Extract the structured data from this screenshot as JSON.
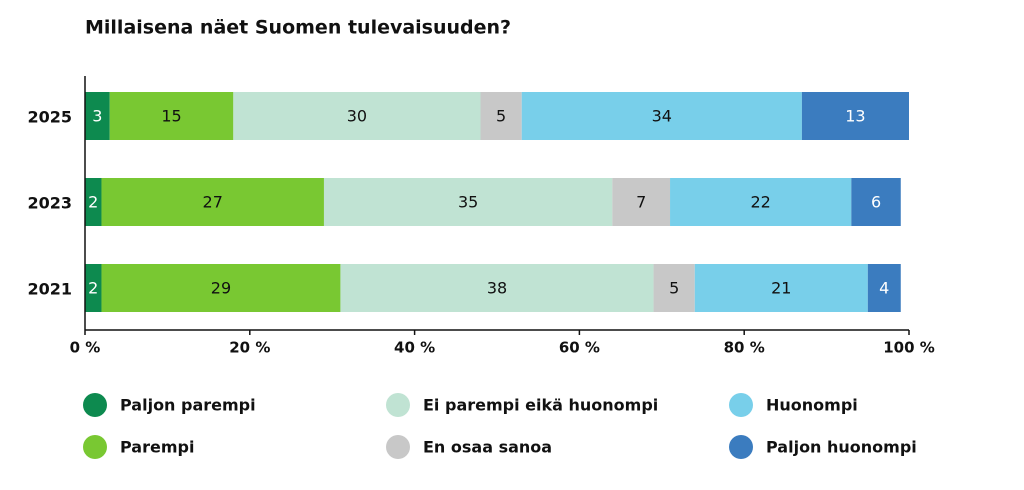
{
  "chart_data": {
    "type": "stacked-bar-horizontal",
    "title": "Millaisena näet Suomen tulevaisuuden?",
    "categories": [
      "2025",
      "2023",
      "2021"
    ],
    "series": [
      {
        "name": "Paljon parempi",
        "color": "#0d8a4f",
        "values": [
          3,
          2,
          2
        ]
      },
      {
        "name": "Parempi",
        "color": "#79c832",
        "values": [
          15,
          27,
          29
        ]
      },
      {
        "name": "Ei parempi eikä huonompi",
        "color": "#c0e3d3",
        "values": [
          30,
          35,
          38
        ]
      },
      {
        "name": "En osaa sanoa",
        "color": "#c8c8c8",
        "values": [
          5,
          7,
          5
        ]
      },
      {
        "name": "Huonompi",
        "color": "#78cfea",
        "values": [
          34,
          22,
          21
        ]
      },
      {
        "name": "Paljon huonompi",
        "color": "#3b7cbf",
        "values": [
          13,
          6,
          4
        ]
      }
    ],
    "xlim": [
      0,
      100
    ],
    "xticks": [
      {
        "value": 0,
        "label": "0 %"
      },
      {
        "value": 20,
        "label": "20 %"
      },
      {
        "value": 40,
        "label": "40 %"
      },
      {
        "value": 60,
        "label": "60 %"
      },
      {
        "value": 80,
        "label": "80 %"
      },
      {
        "value": 100,
        "label": "100 %"
      }
    ],
    "legend": "bottom"
  }
}
